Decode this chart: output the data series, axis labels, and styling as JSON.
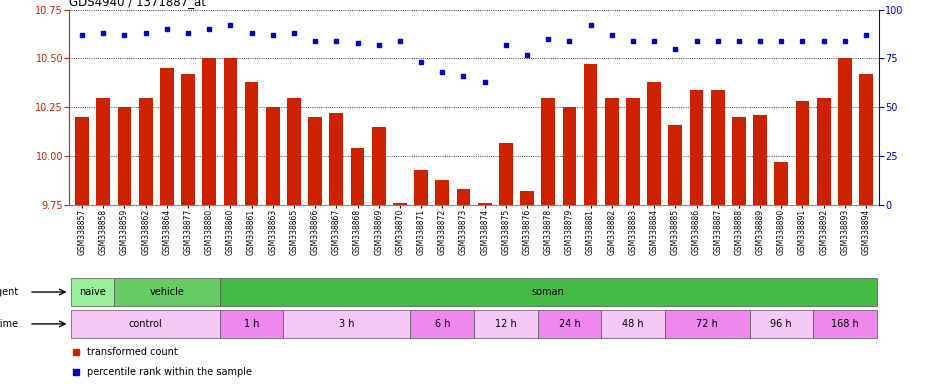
{
  "title": "GDS4940 / 1371887_at",
  "samples": [
    "GSM338857",
    "GSM338858",
    "GSM338859",
    "GSM338862",
    "GSM338864",
    "GSM338877",
    "GSM338880",
    "GSM338860",
    "GSM338861",
    "GSM338863",
    "GSM338865",
    "GSM338866",
    "GSM338867",
    "GSM338868",
    "GSM338869",
    "GSM338870",
    "GSM338871",
    "GSM338872",
    "GSM338873",
    "GSM338874",
    "GSM338875",
    "GSM338876",
    "GSM338878",
    "GSM338879",
    "GSM338881",
    "GSM338882",
    "GSM338883",
    "GSM338884",
    "GSM338885",
    "GSM338886",
    "GSM338887",
    "GSM338888",
    "GSM338889",
    "GSM338890",
    "GSM338891",
    "GSM338892",
    "GSM338893",
    "GSM338894"
  ],
  "bar_values": [
    10.2,
    10.3,
    10.25,
    10.3,
    10.45,
    10.42,
    10.5,
    10.5,
    10.38,
    10.25,
    10.3,
    10.2,
    10.22,
    10.04,
    10.15,
    9.76,
    9.93,
    9.88,
    9.83,
    9.76,
    10.07,
    9.82,
    10.3,
    10.25,
    10.47,
    10.3,
    10.3,
    10.38,
    10.16,
    10.34,
    10.34,
    10.2,
    10.21,
    9.97,
    10.28,
    10.3,
    10.5,
    10.42
  ],
  "dot_values": [
    87,
    88,
    87,
    88,
    90,
    88,
    90,
    92,
    88,
    87,
    88,
    84,
    84,
    83,
    82,
    84,
    73,
    68,
    66,
    63,
    82,
    77,
    85,
    84,
    92,
    87,
    84,
    84,
    80,
    84,
    84,
    84,
    84,
    84,
    84,
    84,
    84,
    87
  ],
  "ylim_left": [
    9.75,
    10.75
  ],
  "ylim_right": [
    0,
    100
  ],
  "yticks_left": [
    9.75,
    10.0,
    10.25,
    10.5,
    10.75
  ],
  "yticks_right": [
    0,
    25,
    50,
    75,
    100
  ],
  "bar_color": "#cc2200",
  "dot_color": "#0000cc",
  "agent_groups": [
    {
      "label": "naive",
      "start": 0,
      "end": 2,
      "color": "#99ee99"
    },
    {
      "label": "vehicle",
      "start": 2,
      "end": 7,
      "color": "#66cc66"
    },
    {
      "label": "soman",
      "start": 7,
      "end": 38,
      "color": "#44bb44"
    }
  ],
  "time_groups": [
    {
      "label": "control",
      "start": 0,
      "end": 7,
      "color": "#f5c8f5"
    },
    {
      "label": "1 h",
      "start": 7,
      "end": 10,
      "color": "#ee88ee"
    },
    {
      "label": "3 h",
      "start": 10,
      "end": 16,
      "color": "#f5c8f5"
    },
    {
      "label": "6 h",
      "start": 16,
      "end": 19,
      "color": "#ee88ee"
    },
    {
      "label": "12 h",
      "start": 19,
      "end": 22,
      "color": "#f5c8f5"
    },
    {
      "label": "24 h",
      "start": 22,
      "end": 25,
      "color": "#ee88ee"
    },
    {
      "label": "48 h",
      "start": 25,
      "end": 28,
      "color": "#f5c8f5"
    },
    {
      "label": "72 h",
      "start": 28,
      "end": 32,
      "color": "#ee88ee"
    },
    {
      "label": "96 h",
      "start": 32,
      "end": 35,
      "color": "#f5c8f5"
    },
    {
      "label": "168 h",
      "start": 35,
      "end": 38,
      "color": "#ee88ee"
    }
  ],
  "legend_items": [
    {
      "label": "transformed count",
      "color": "#cc2200"
    },
    {
      "label": "percentile rank within the sample",
      "color": "#0000cc"
    }
  ],
  "background_color": "#ffffff"
}
